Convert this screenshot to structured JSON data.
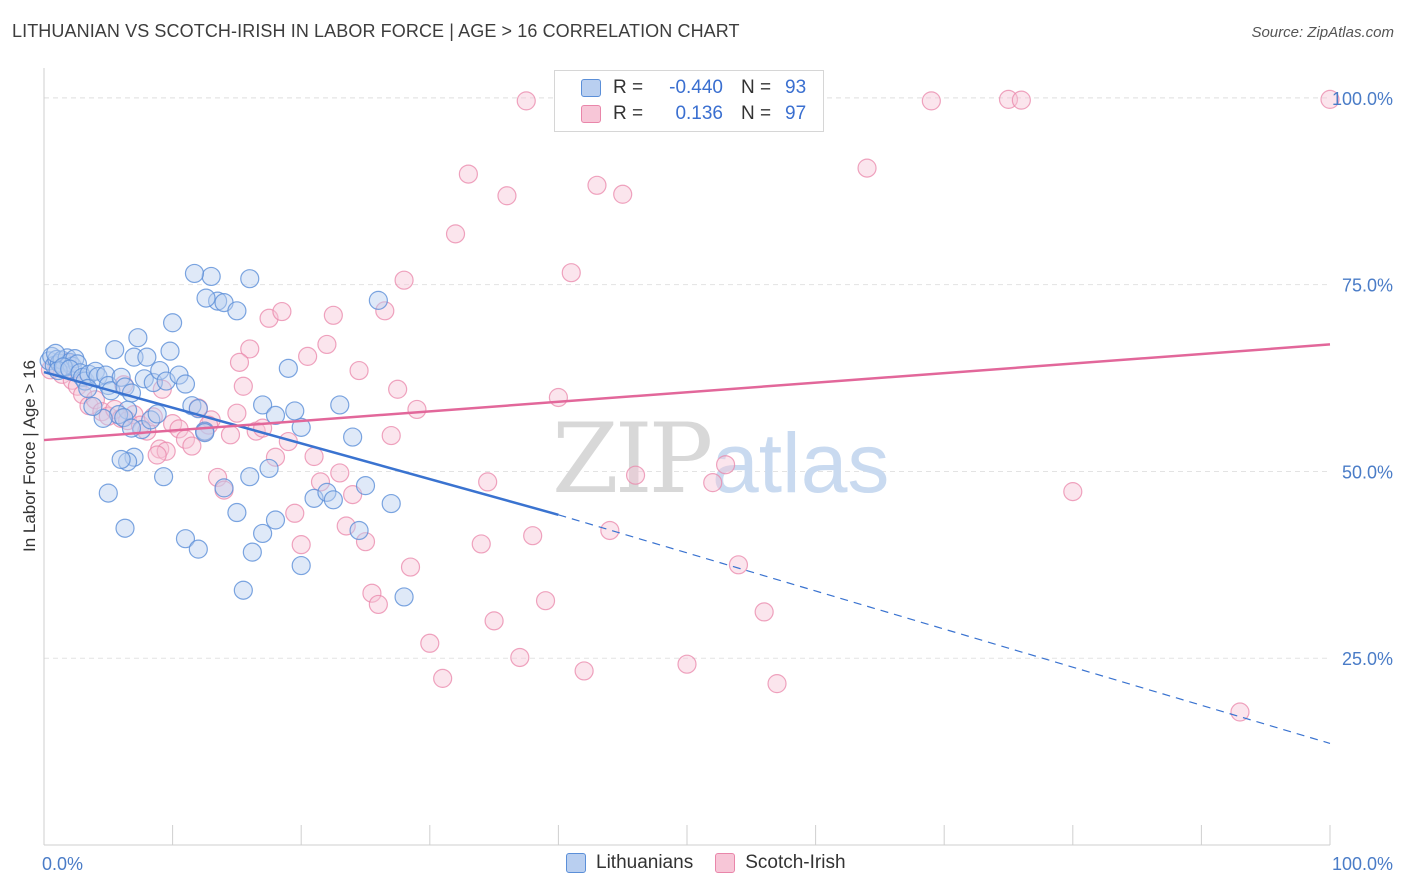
{
  "title": "LITHUANIAN VS SCOTCH-IRISH IN LABOR FORCE | AGE > 16 CORRELATION CHART",
  "source": "Source: ZipAtlas.com",
  "watermark": {
    "zip": "ZIP",
    "atlas": "atlas"
  },
  "legend": {
    "r_label": "R =",
    "n_label": "N =",
    "entries": [
      {
        "r": "-0.440",
        "n": "93"
      },
      {
        "r": "0.136",
        "n": "97"
      }
    ]
  },
  "bottom_legend": [
    "Lithuanians",
    "Scotch-Irish"
  ],
  "chart_data": {
    "type": "scatter",
    "title": "LITHUANIAN VS SCOTCH-IRISH IN LABOR FORCE | AGE > 16 CORRELATION CHART",
    "xlabel": "",
    "ylabel": "In Labor Force | Age > 16",
    "xlim": [
      0,
      100
    ],
    "ylim": [
      0,
      104
    ],
    "x_tick_labels": [
      "0.0%",
      "100.0%"
    ],
    "y_ticks": [
      25,
      50,
      75,
      100
    ],
    "y_tick_labels": [
      "25.0%",
      "50.0%",
      "75.0%",
      "100.0%"
    ],
    "grid": true,
    "legend_position": "top-center",
    "colors": {
      "lithuanians": "#5b8fd8",
      "lithuanians_fill": "#b9cff0",
      "scotch_irish": "#e986aa",
      "scotch_irish_fill": "#f7c6d7",
      "blue_line": "#3a73d0",
      "pink_line": "#e2679a"
    },
    "series": [
      {
        "name": "Lithuanians",
        "r": -0.44,
        "n": 93,
        "trend": {
          "x": [
            0,
            40
          ],
          "y": [
            63.3,
            44.2
          ],
          "dashed_x": [
            40,
            100
          ],
          "dashed_y": [
            44.2,
            13.6
          ]
        },
        "points": [
          [
            0.4,
            64.8
          ],
          [
            0.6,
            65.4
          ],
          [
            0.8,
            64.2
          ],
          [
            1.0,
            65.0
          ],
          [
            1.2,
            64.5
          ],
          [
            1.4,
            64.9
          ],
          [
            1.6,
            63.9
          ],
          [
            1.8,
            65.2
          ],
          [
            2.0,
            64.6
          ],
          [
            2.2,
            64.1
          ],
          [
            2.4,
            65.1
          ],
          [
            2.6,
            64.4
          ],
          [
            1.1,
            63.5
          ],
          [
            0.9,
            65.8
          ],
          [
            1.5,
            64.0
          ],
          [
            2.0,
            63.7
          ],
          [
            2.8,
            63.2
          ],
          [
            3.0,
            62.6
          ],
          [
            3.2,
            62.1
          ],
          [
            3.5,
            63.0
          ],
          [
            4.0,
            63.4
          ],
          [
            4.2,
            62.7
          ],
          [
            4.8,
            62.9
          ],
          [
            5.0,
            61.5
          ],
          [
            5.2,
            60.8
          ],
          [
            5.5,
            66.3
          ],
          [
            6.0,
            62.6
          ],
          [
            6.3,
            61.3
          ],
          [
            6.8,
            60.5
          ],
          [
            7.0,
            65.3
          ],
          [
            7.3,
            67.9
          ],
          [
            7.8,
            62.4
          ],
          [
            8.0,
            65.3
          ],
          [
            8.5,
            61.9
          ],
          [
            9.0,
            63.5
          ],
          [
            9.5,
            62.1
          ],
          [
            10.0,
            69.9
          ],
          [
            10.5,
            62.9
          ],
          [
            11.0,
            61.7
          ],
          [
            11.5,
            58.8
          ],
          [
            12.0,
            58.4
          ],
          [
            12.5,
            55.4
          ],
          [
            13.0,
            76.1
          ],
          [
            13.5,
            72.8
          ],
          [
            14.0,
            72.6
          ],
          [
            15.0,
            71.5
          ],
          [
            16.0,
            75.8
          ],
          [
            17.0,
            58.9
          ],
          [
            18.0,
            57.5
          ],
          [
            19.0,
            63.8
          ],
          [
            20.0,
            55.9
          ],
          [
            21.0,
            46.4
          ],
          [
            22.0,
            47.2
          ],
          [
            23.0,
            58.9
          ],
          [
            24.0,
            54.6
          ],
          [
            25.0,
            48.1
          ],
          [
            26.0,
            72.9
          ],
          [
            27.0,
            45.7
          ],
          [
            28.0,
            33.2
          ],
          [
            11.7,
            76.5
          ],
          [
            12.6,
            73.2
          ],
          [
            9.8,
            66.1
          ],
          [
            6.5,
            58.2
          ],
          [
            5.8,
            57.6
          ],
          [
            4.6,
            57.1
          ],
          [
            7.6,
            55.6
          ],
          [
            8.3,
            56.9
          ],
          [
            8.8,
            57.7
          ],
          [
            9.3,
            49.3
          ],
          [
            7.0,
            51.9
          ],
          [
            6.5,
            51.3
          ],
          [
            6.0,
            51.6
          ],
          [
            6.2,
            57.2
          ],
          [
            6.8,
            55.8
          ],
          [
            5.0,
            47.1
          ],
          [
            6.3,
            42.4
          ],
          [
            11.0,
            41.0
          ],
          [
            12.0,
            39.6
          ],
          [
            15.5,
            34.1
          ],
          [
            16.2,
            39.2
          ],
          [
            17.0,
            41.7
          ],
          [
            18.0,
            43.5
          ],
          [
            20.0,
            37.4
          ],
          [
            12.5,
            55.2
          ],
          [
            14.0,
            47.8
          ],
          [
            15.0,
            44.5
          ],
          [
            16.0,
            49.3
          ],
          [
            17.5,
            50.4
          ],
          [
            19.5,
            58.1
          ],
          [
            22.5,
            46.2
          ],
          [
            24.5,
            42.1
          ],
          [
            3.4,
            61.1
          ],
          [
            3.8,
            58.7
          ]
        ]
      },
      {
        "name": "Scotch-Irish",
        "r": 0.136,
        "n": 97,
        "trend": {
          "x": [
            0,
            100
          ],
          "y": [
            54.2,
            67.0
          ]
        },
        "points": [
          [
            0.5,
            63.6
          ],
          [
            1.0,
            64.1
          ],
          [
            1.4,
            63.0
          ],
          [
            1.8,
            64.6
          ],
          [
            2.2,
            62.2
          ],
          [
            2.6,
            61.4
          ],
          [
            3.0,
            60.3
          ],
          [
            3.5,
            58.8
          ],
          [
            4.0,
            59.6
          ],
          [
            4.5,
            58.0
          ],
          [
            5.0,
            57.4
          ],
          [
            5.5,
            58.3
          ],
          [
            6.0,
            57.1
          ],
          [
            6.5,
            56.8
          ],
          [
            7.0,
            57.6
          ],
          [
            7.5,
            56.2
          ],
          [
            8.0,
            55.4
          ],
          [
            8.5,
            57.3
          ],
          [
            9.0,
            53.0
          ],
          [
            9.5,
            52.7
          ],
          [
            10.0,
            56.4
          ],
          [
            10.5,
            55.7
          ],
          [
            11.0,
            54.3
          ],
          [
            11.5,
            53.4
          ],
          [
            12.0,
            58.5
          ],
          [
            12.5,
            55.3
          ],
          [
            13.0,
            56.9
          ],
          [
            13.5,
            49.2
          ],
          [
            14.0,
            47.5
          ],
          [
            14.5,
            54.9
          ],
          [
            15.0,
            57.8
          ],
          [
            15.5,
            61.4
          ],
          [
            16.0,
            66.4
          ],
          [
            16.5,
            55.4
          ],
          [
            17.0,
            55.8
          ],
          [
            17.5,
            70.5
          ],
          [
            18.0,
            51.9
          ],
          [
            18.5,
            71.4
          ],
          [
            19.0,
            54.0
          ],
          [
            19.5,
            44.4
          ],
          [
            20.0,
            40.2
          ],
          [
            20.5,
            65.4
          ],
          [
            21.0,
            52.0
          ],
          [
            21.5,
            48.6
          ],
          [
            22.0,
            67.0
          ],
          [
            22.5,
            70.9
          ],
          [
            23.0,
            49.8
          ],
          [
            23.5,
            42.7
          ],
          [
            24.0,
            46.9
          ],
          [
            24.5,
            63.5
          ],
          [
            25.0,
            40.6
          ],
          [
            25.5,
            33.7
          ],
          [
            26.0,
            32.2
          ],
          [
            26.5,
            71.5
          ],
          [
            27.0,
            54.8
          ],
          [
            27.5,
            61.0
          ],
          [
            28.0,
            75.6
          ],
          [
            28.5,
            37.2
          ],
          [
            29.0,
            58.3
          ],
          [
            30.0,
            27.0
          ],
          [
            31.0,
            22.3
          ],
          [
            32.0,
            81.8
          ],
          [
            33.0,
            89.8
          ],
          [
            34.0,
            40.3
          ],
          [
            35.0,
            30.0
          ],
          [
            36.0,
            86.9
          ],
          [
            37.0,
            25.1
          ],
          [
            38.0,
            41.4
          ],
          [
            39.0,
            32.7
          ],
          [
            40.0,
            59.9
          ],
          [
            41.0,
            76.6
          ],
          [
            42.0,
            23.3
          ],
          [
            43.0,
            88.3
          ],
          [
            44.0,
            42.1
          ],
          [
            45.0,
            87.1
          ],
          [
            46.0,
            49.5
          ],
          [
            50.0,
            24.2
          ],
          [
            52.0,
            48.5
          ],
          [
            53.0,
            50.9
          ],
          [
            54.0,
            37.5
          ],
          [
            56.0,
            31.2
          ],
          [
            57.0,
            21.6
          ],
          [
            64.0,
            90.6
          ],
          [
            69.0,
            99.6
          ],
          [
            75.0,
            99.8
          ],
          [
            76.0,
            99.7
          ],
          [
            80.0,
            47.3
          ],
          [
            93.0,
            17.8
          ],
          [
            100.0,
            99.8
          ],
          [
            34.5,
            48.6
          ],
          [
            37.5,
            99.6
          ],
          [
            42.5,
            99.4
          ],
          [
            8.8,
            52.2
          ],
          [
            6.2,
            61.6
          ],
          [
            12.8,
            56.2
          ],
          [
            9.2,
            61.0
          ],
          [
            15.2,
            64.6
          ]
        ]
      }
    ]
  }
}
